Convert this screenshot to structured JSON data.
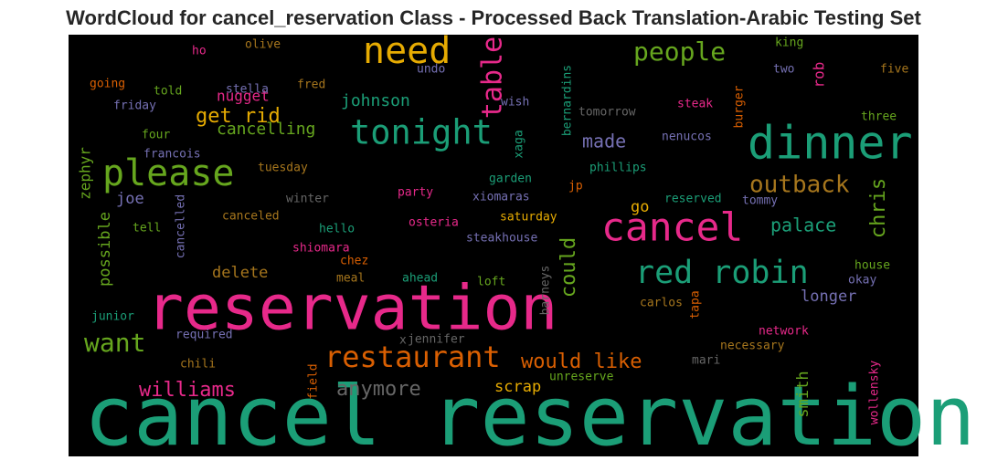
{
  "title": "WordCloud for cancel_reservation Class - Processed Back Translation-Arabic Testing Set",
  "words": [
    {
      "text": "cancel reservation",
      "color": "#1b9e77"
    },
    {
      "text": "reservation",
      "color": "#e7298a"
    },
    {
      "text": "dinner",
      "color": "#1b9e77"
    },
    {
      "text": "cancel",
      "color": "#e7298a"
    },
    {
      "text": "please",
      "color": "#66a61e"
    },
    {
      "text": "need",
      "color": "#e6ab02"
    },
    {
      "text": "tonight",
      "color": "#1b9e77"
    },
    {
      "text": "red robin",
      "color": "#1b9e77"
    },
    {
      "text": "restaurant",
      "color": "#d95f02"
    },
    {
      "text": "people",
      "color": "#66a61e"
    },
    {
      "text": "outback",
      "color": "#a6761d"
    },
    {
      "text": "want",
      "color": "#66a61e"
    },
    {
      "text": "table",
      "color": "#e7298a"
    },
    {
      "text": "would like",
      "color": "#d95f02"
    },
    {
      "text": "williams",
      "color": "#e7298a"
    },
    {
      "text": "anymore",
      "color": "#666666"
    },
    {
      "text": "get rid",
      "color": "#e6ab02"
    },
    {
      "text": "cancelling",
      "color": "#66a61e"
    },
    {
      "text": "johnson",
      "color": "#1b9e77"
    },
    {
      "text": "nugget",
      "color": "#e7298a"
    },
    {
      "text": "made",
      "color": "#7570b3"
    },
    {
      "text": "palace",
      "color": "#1b9e77"
    },
    {
      "text": "chris",
      "color": "#66a61e"
    },
    {
      "text": "could",
      "color": "#66a61e"
    },
    {
      "text": "go",
      "color": "#e6ab02"
    },
    {
      "text": "longer",
      "color": "#7570b3"
    },
    {
      "text": "delete",
      "color": "#a6761d"
    },
    {
      "text": "scrap",
      "color": "#e6ab02"
    },
    {
      "text": "smith",
      "color": "#66a61e"
    },
    {
      "text": "possible",
      "color": "#66a61e"
    },
    {
      "text": "zephyr",
      "color": "#66a61e"
    },
    {
      "text": "joe",
      "color": "#7570b3"
    },
    {
      "text": "rob",
      "color": "#e7298a"
    },
    {
      "text": "ho",
      "color": "#e7298a"
    },
    {
      "text": "olive",
      "color": "#a6761d"
    },
    {
      "text": "going",
      "color": "#d95f02"
    },
    {
      "text": "told",
      "color": "#66a61e"
    },
    {
      "text": "stella",
      "color": "#7570b3"
    },
    {
      "text": "fred",
      "color": "#a6761d"
    },
    {
      "text": "undo",
      "color": "#7570b3"
    },
    {
      "text": "wish",
      "color": "#7570b3"
    },
    {
      "text": "friday",
      "color": "#7570b3"
    },
    {
      "text": "four",
      "color": "#66a61e"
    },
    {
      "text": "francois",
      "color": "#7570b3"
    },
    {
      "text": "tuesday",
      "color": "#a6761d"
    },
    {
      "text": "winter",
      "color": "#666666"
    },
    {
      "text": "party",
      "color": "#e7298a"
    },
    {
      "text": "xiomaras",
      "color": "#7570b3"
    },
    {
      "text": "garden",
      "color": "#1b9e77"
    },
    {
      "text": "jp",
      "color": "#d95f02"
    },
    {
      "text": "phillips",
      "color": "#1b9e77"
    },
    {
      "text": "tomorrow",
      "color": "#666666"
    },
    {
      "text": "steak",
      "color": "#e7298a"
    },
    {
      "text": "nenucos",
      "color": "#7570b3"
    },
    {
      "text": "king",
      "color": "#66a61e"
    },
    {
      "text": "two",
      "color": "#7570b3"
    },
    {
      "text": "five",
      "color": "#a6761d"
    },
    {
      "text": "three",
      "color": "#66a61e"
    },
    {
      "text": "reserved",
      "color": "#1b9e77"
    },
    {
      "text": "tommy",
      "color": "#7570b3"
    },
    {
      "text": "tell",
      "color": "#66a61e"
    },
    {
      "text": "canceled",
      "color": "#a6761d"
    },
    {
      "text": "hello",
      "color": "#1b9e77"
    },
    {
      "text": "osteria",
      "color": "#e7298a"
    },
    {
      "text": "saturday",
      "color": "#e6ab02"
    },
    {
      "text": "steakhouse",
      "color": "#7570b3"
    },
    {
      "text": "shiomara",
      "color": "#e7298a"
    },
    {
      "text": "chez",
      "color": "#d95f02"
    },
    {
      "text": "meal",
      "color": "#a6761d"
    },
    {
      "text": "ahead",
      "color": "#1b9e77"
    },
    {
      "text": "loft",
      "color": "#66a61e"
    },
    {
      "text": "house",
      "color": "#66a61e"
    },
    {
      "text": "okay",
      "color": "#7570b3"
    },
    {
      "text": "jennifer",
      "color": "#666666"
    },
    {
      "text": "x",
      "color": "#666666"
    },
    {
      "text": "carlos",
      "color": "#a6761d"
    },
    {
      "text": "network",
      "color": "#e7298a"
    },
    {
      "text": "necessary",
      "color": "#a6761d"
    },
    {
      "text": "junior",
      "color": "#1b9e77"
    },
    {
      "text": "required",
      "color": "#7570b3"
    },
    {
      "text": "chili",
      "color": "#a6761d"
    },
    {
      "text": "mari",
      "color": "#666666"
    },
    {
      "text": "unreserve",
      "color": "#66a61e"
    },
    {
      "text": "bernardins",
      "color": "#1b9e77"
    },
    {
      "text": "xaga",
      "color": "#1b9e77"
    },
    {
      "text": "burger",
      "color": "#d95f02"
    },
    {
      "text": "cancelled",
      "color": "#7570b3"
    },
    {
      "text": "barneys",
      "color": "#666666"
    },
    {
      "text": "tapa",
      "color": "#d95f02"
    },
    {
      "text": "field",
      "color": "#d95f02"
    },
    {
      "text": "wollensky",
      "color": "#e7298a"
    }
  ]
}
